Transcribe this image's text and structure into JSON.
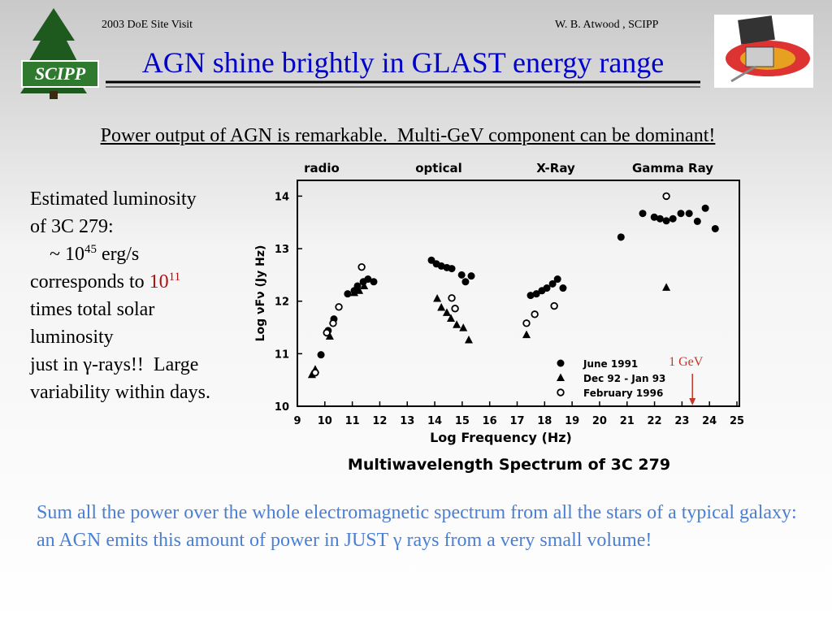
{
  "header": {
    "left": "2003 DoE Site Visit",
    "right": "W. B. Atwood , SCIPP",
    "title": "AGN shine brightly in GLAST energy range",
    "logo_text": "SCIPP"
  },
  "subtitle": "Power output of AGN is remarkable.  Multi-GeV component can be dominant!",
  "left_text": {
    "line1": "Estimated luminosity",
    "line2": "of 3C 279:",
    "line3_pre": "    ~ 10",
    "line3_sup": "45",
    "line3_post": " erg/s",
    "line4_pre": "corresponds to ",
    "line4_base": "10",
    "line4_sup": "11",
    "line5": "times total solar",
    "line6": "luminosity",
    "line7": "just in γ-rays!!  Large",
    "line8": "variability within days."
  },
  "bottom_text": "Sum all the power over the whole electromagnetic spectrum from all the stars of a typical galaxy: an AGN emits this amount of power in JUST γ rays from a very small volume!",
  "chart_data": {
    "type": "scatter",
    "title": "Multiwavelength Spectrum of 3C 279",
    "x_label": "Log Frequency (Hz)",
    "y_label": "Log νFν (Jy Hz)",
    "region_labels": [
      "radio",
      "optical",
      "X-Ray",
      "Gamma Ray"
    ],
    "annotation": {
      "text": "1 GeV",
      "x": 23.38
    },
    "xlim": [
      9,
      25
    ],
    "xticks": [
      9,
      10,
      11,
      12,
      13,
      14,
      15,
      16,
      17,
      18,
      19,
      20,
      21,
      22,
      23,
      24,
      25
    ],
    "ylim": [
      10,
      14.3
    ],
    "yticks": [
      10,
      11,
      12,
      13,
      14
    ],
    "series": [
      {
        "name": "June 1991",
        "marker": "filled-circle",
        "color": "#000000",
        "x": [
          9.86,
          10.12,
          10.33,
          10.83,
          11.07,
          11.19,
          11.4,
          11.57,
          11.78,
          13.88,
          14.06,
          14.24,
          14.44,
          14.62,
          14.98,
          15.12,
          15.33,
          17.49,
          17.7,
          17.9,
          18.08,
          18.29,
          18.47,
          18.67,
          20.78,
          21.57,
          21.99,
          22.2,
          22.43,
          22.67,
          22.96,
          23.26,
          23.56,
          23.85,
          24.21
        ],
        "values": [
          10.98,
          11.44,
          11.66,
          12.14,
          12.2,
          12.29,
          12.37,
          12.42,
          12.37,
          12.78,
          12.71,
          12.67,
          12.64,
          12.62,
          12.5,
          12.37,
          12.48,
          12.11,
          12.14,
          12.2,
          12.25,
          12.33,
          12.42,
          12.25,
          13.22,
          13.67,
          13.6,
          13.57,
          13.53,
          13.57,
          13.67,
          13.67,
          13.52,
          13.77,
          13.38
        ]
      },
      {
        "name": "Dec 92 - Jan 93",
        "marker": "triangle",
        "color": "#000000",
        "x": [
          9.53,
          9.65,
          10.18,
          11.07,
          11.25,
          11.43,
          14.09,
          14.24,
          14.44,
          14.59,
          14.8,
          15.04,
          15.24,
          17.34,
          22.43
        ],
        "values": [
          10.6,
          10.7,
          11.33,
          12.16,
          12.2,
          12.29,
          12.05,
          11.88,
          11.78,
          11.67,
          11.55,
          11.49,
          11.26,
          11.36,
          12.26
        ]
      },
      {
        "name": "February 1996",
        "marker": "open-circle",
        "color": "#000000",
        "x": [
          9.65,
          10.07,
          10.3,
          10.51,
          11.34,
          14.62,
          14.74,
          17.34,
          17.64,
          18.35,
          22.43
        ],
        "values": [
          10.64,
          11.4,
          11.58,
          11.89,
          12.65,
          12.06,
          11.86,
          11.58,
          11.75,
          11.91,
          14.0
        ]
      }
    ]
  }
}
